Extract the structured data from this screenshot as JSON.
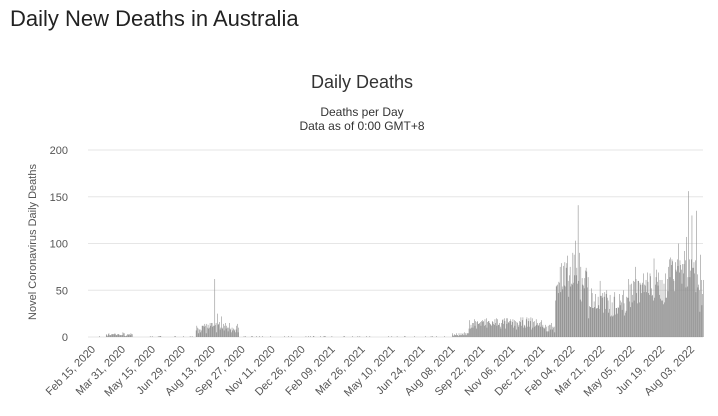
{
  "page": {
    "heading": "Daily New Deaths in Australia"
  },
  "colors": {
    "bar": "#8c8c8c",
    "grid": "#e6e6e6",
    "text": "#333333"
  },
  "chart_data": {
    "type": "bar",
    "title": "Daily Deaths",
    "subtitle_lines": [
      "Deaths per Day",
      "Data as of 0:00 GMT+8"
    ],
    "xlabel": "",
    "ylabel": "Novel Coronavirus Daily Deaths",
    "ylim": [
      0,
      200
    ],
    "yticks": [
      0,
      50,
      100,
      150,
      200
    ],
    "tick_labels": [
      "Feb 15, 2020",
      "Mar 31, 2020",
      "May 15, 2020",
      "Jun 29, 2020",
      "Aug 13, 2020",
      "Sep 27, 2020",
      "Nov 11, 2020",
      "Dec 26, 2020",
      "Feb 09, 2021",
      "Mar 26, 2021",
      "May 10, 2021",
      "Jun 24, 2021",
      "Aug 08, 2021",
      "Sep 22, 2021",
      "Nov 06, 2021",
      "Dec 21, 2021",
      "Feb 04, 2022",
      "Mar 21, 2022",
      "May 05, 2022",
      "Jun 19, 2022",
      "Aug 03, 2022"
    ],
    "series": [
      {
        "name": "Daily Deaths",
        "start": "Feb 15, 2020",
        "days_between_ticks": 45,
        "segments": [
          {
            "from_day": 0,
            "to_day": 15,
            "base": 0,
            "spread": 0
          },
          {
            "from_day": 15,
            "to_day": 55,
            "base": 2,
            "spread": 3
          },
          {
            "from_day": 55,
            "to_day": 150,
            "base": 0,
            "spread": 1
          },
          {
            "from_day": 150,
            "to_day": 215,
            "base": 8,
            "spread": 10
          },
          {
            "from_day": 215,
            "to_day": 535,
            "base": 0,
            "spread": 0
          },
          {
            "from_day": 535,
            "to_day": 560,
            "base": 2,
            "spread": 3
          },
          {
            "from_day": 560,
            "to_day": 670,
            "base": 12,
            "spread": 10
          },
          {
            "from_day": 670,
            "to_day": 690,
            "base": 8,
            "spread": 8
          },
          {
            "from_day": 690,
            "to_day": 740,
            "base": 50,
            "spread": 40
          },
          {
            "from_day": 740,
            "to_day": 800,
            "base": 30,
            "spread": 25
          },
          {
            "from_day": 800,
            "to_day": 860,
            "base": 45,
            "spread": 30
          },
          {
            "from_day": 860,
            "to_day": 904,
            "base": 65,
            "spread": 40
          },
          {
            "from_day": 904,
            "to_day": 936,
            "base": 40,
            "spread": 40
          }
        ],
        "peaks": [
          {
            "day": 40,
            "value": 5
          },
          {
            "day": 178,
            "value": 62
          },
          {
            "day": 182,
            "value": 25
          },
          {
            "day": 188,
            "value": 22
          },
          {
            "day": 213,
            "value": 5
          },
          {
            "day": 716,
            "value": 90
          },
          {
            "day": 720,
            "value": 103
          },
          {
            "day": 724,
            "value": 141
          },
          {
            "day": 726,
            "value": 90
          },
          {
            "day": 737,
            "value": 70
          },
          {
            "day": 757,
            "value": 60
          },
          {
            "day": 810,
            "value": 75
          },
          {
            "day": 838,
            "value": 84
          },
          {
            "day": 870,
            "value": 80
          },
          {
            "day": 875,
            "value": 100
          },
          {
            "day": 887,
            "value": 107
          },
          {
            "day": 890,
            "value": 156
          },
          {
            "day": 895,
            "value": 130
          },
          {
            "day": 902,
            "value": 135
          },
          {
            "day": 908,
            "value": 88
          },
          {
            "day": 914,
            "value": 130
          },
          {
            "day": 924,
            "value": 80
          },
          {
            "day": 934,
            "value": 132
          }
        ]
      }
    ]
  }
}
